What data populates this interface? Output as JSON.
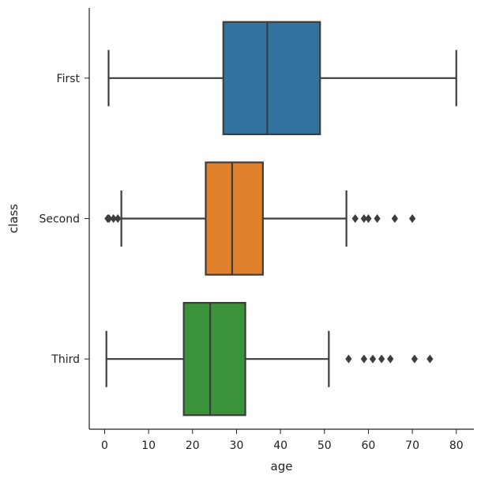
{
  "chart_data": {
    "type": "box",
    "orientation": "horizontal",
    "title": "",
    "xlabel": "age",
    "ylabel": "class",
    "xlim": [
      -3.5,
      84
    ],
    "xticks": [
      0,
      10,
      20,
      30,
      40,
      50,
      60,
      70,
      80
    ],
    "categories": [
      "First",
      "Second",
      "Third"
    ],
    "grid": false,
    "boxes": [
      {
        "category": "First",
        "color": "#3274a1",
        "whisker_low": 0.9,
        "q1": 27,
        "median": 37,
        "q3": 49,
        "whisker_high": 80,
        "outliers": []
      },
      {
        "category": "Second",
        "color": "#e1812c",
        "whisker_low": 3.8,
        "q1": 23,
        "median": 29,
        "q3": 36,
        "whisker_high": 55,
        "outliers": [
          0.7,
          1,
          2,
          3,
          57,
          59,
          60,
          62,
          66,
          70
        ]
      },
      {
        "category": "Third",
        "color": "#3a923a",
        "whisker_low": 0.4,
        "q1": 18,
        "median": 24,
        "q3": 32,
        "whisker_high": 51,
        "outliers": [
          55.5,
          59,
          61,
          63,
          65,
          70.5,
          74
        ]
      }
    ]
  }
}
